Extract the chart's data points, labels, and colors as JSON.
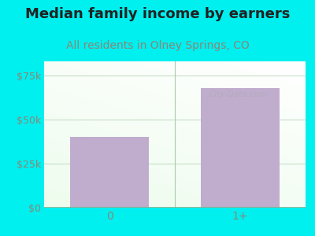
{
  "title": "Median family income by earners",
  "subtitle": "All residents in Olney Springs, CO",
  "categories": [
    "0",
    "1+"
  ],
  "values": [
    40000,
    68000
  ],
  "bar_color": "#C0ADCE",
  "ylim": [
    0,
    83000
  ],
  "yticks": [
    0,
    25000,
    50000,
    75000
  ],
  "ytick_labels": [
    "$0",
    "$25k",
    "$50k",
    "$75k"
  ],
  "background_color": "#00EFEF",
  "title_color": "#222222",
  "subtitle_color": "#888877",
  "watermark": "City-Data.com",
  "title_fontsize": 13,
  "subtitle_fontsize": 10,
  "tick_color": "#888877",
  "grid_color": "#c8ddc8",
  "plot_bg_left": "#d8edd8",
  "plot_bg_right": "#f0faf0",
  "plot_bg_top": "#f5fdf5",
  "plot_bg_bottom": "#c8e8c8"
}
